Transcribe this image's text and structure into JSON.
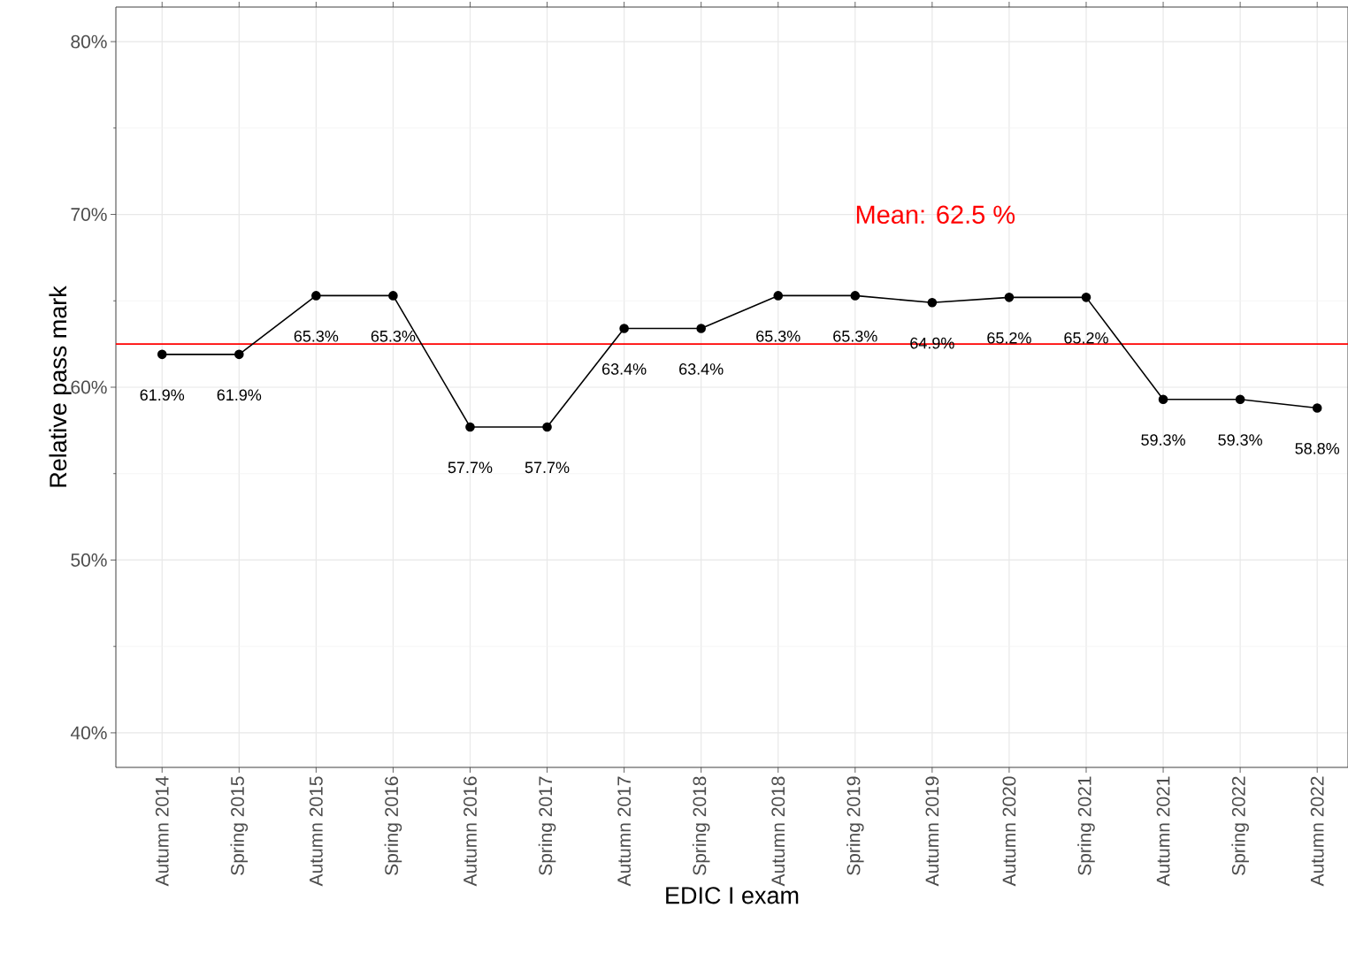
{
  "chart_data": {
    "type": "line",
    "xlabel": "EDIC I exam",
    "ylabel": "Relative pass mark",
    "categories": [
      "Autumn 2014",
      "Spring 2015",
      "Autumn 2015",
      "Spring 2016",
      "Autumn 2016",
      "Spring 2017",
      "Autumn 2017",
      "Spring 2018",
      "Autumn 2018",
      "Spring 2019",
      "Autumn 2019",
      "Autumn 2020",
      "Spring 2021",
      "Autumn 2021",
      "Spring 2022",
      "Autumn 2022"
    ],
    "series": [
      {
        "color": "#000000",
        "values": [
          61.9,
          61.9,
          65.3,
          65.3,
          57.7,
          57.7,
          63.4,
          63.4,
          65.3,
          65.3,
          64.9,
          65.2,
          65.2,
          59.3,
          59.3,
          58.8
        ],
        "value_labels": [
          "61.9%",
          "61.9%",
          "65.3%",
          "65.3%",
          "57.7%",
          "57.7%",
          "63.4%",
          "63.4%",
          "65.3%",
          "65.3%",
          "64.9%",
          "65.2%",
          "65.2%",
          "59.3%",
          "59.3%",
          "58.8%"
        ]
      }
    ],
    "ylim": [
      38,
      82
    ],
    "yticks": [
      {
        "value": 40,
        "label": "40%"
      },
      {
        "value": 50,
        "label": "50%"
      },
      {
        "value": 60,
        "label": "60%"
      },
      {
        "value": 70,
        "label": "70%"
      },
      {
        "value": 80,
        "label": "80%"
      }
    ],
    "ref_lines": [
      {
        "axis": "y",
        "value": 62.5,
        "label": "Mean: 62.5 %",
        "color": "#ff0000"
      }
    ],
    "grid": true,
    "marker": "circle",
    "line_style": "solid"
  }
}
